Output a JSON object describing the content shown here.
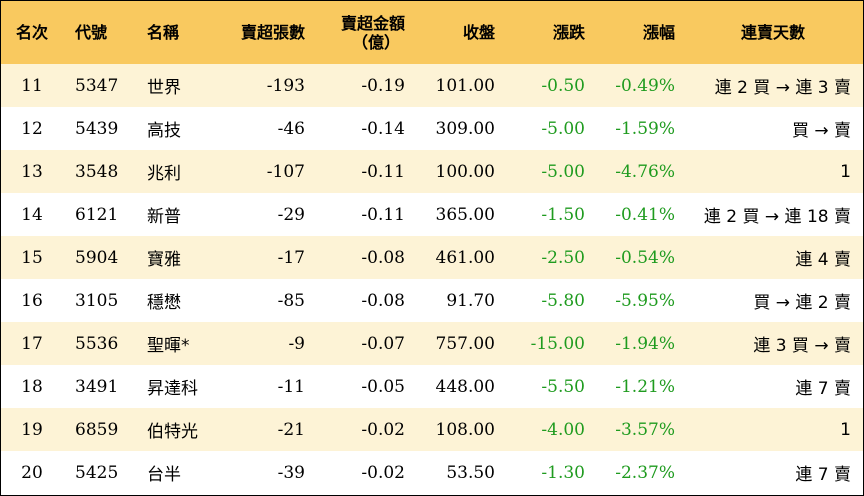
{
  "headers": {
    "rank": "名次",
    "code": "代號",
    "name": "名稱",
    "net_sell_lots": "賣超張數",
    "net_sell_amount_line1": "賣超金額",
    "net_sell_amount_line2": "（億）",
    "close": "收盤",
    "change": "漲跌",
    "change_pct": "漲幅",
    "streak": "連賣天數"
  },
  "rows": [
    {
      "rank": "11",
      "code": "5347",
      "name": "世界",
      "lots": "-193",
      "amount": "-0.19",
      "close": "101.00",
      "change": "-0.50",
      "pct": "-0.49%",
      "streak": "連 2 買 → 連 3 賣"
    },
    {
      "rank": "12",
      "code": "5439",
      "name": "高技",
      "lots": "-46",
      "amount": "-0.14",
      "close": "309.00",
      "change": "-5.00",
      "pct": "-1.59%",
      "streak": "買 → 賣"
    },
    {
      "rank": "13",
      "code": "3548",
      "name": "兆利",
      "lots": "-107",
      "amount": "-0.11",
      "close": "100.00",
      "change": "-5.00",
      "pct": "-4.76%",
      "streak": "1"
    },
    {
      "rank": "14",
      "code": "6121",
      "name": "新普",
      "lots": "-29",
      "amount": "-0.11",
      "close": "365.00",
      "change": "-1.50",
      "pct": "-0.41%",
      "streak": "連 2 買 → 連 18 賣"
    },
    {
      "rank": "15",
      "code": "5904",
      "name": "寶雅",
      "lots": "-17",
      "amount": "-0.08",
      "close": "461.00",
      "change": "-2.50",
      "pct": "-0.54%",
      "streak": "連 4 賣"
    },
    {
      "rank": "16",
      "code": "3105",
      "name": "穩懋",
      "lots": "-85",
      "amount": "-0.08",
      "close": "91.70",
      "change": "-5.80",
      "pct": "-5.95%",
      "streak": "買 → 連 2 賣"
    },
    {
      "rank": "17",
      "code": "5536",
      "name": "聖暉*",
      "lots": "-9",
      "amount": "-0.07",
      "close": "757.00",
      "change": "-15.00",
      "pct": "-1.94%",
      "streak": "連 3 買 → 賣"
    },
    {
      "rank": "18",
      "code": "3491",
      "name": "昇達科",
      "lots": "-11",
      "amount": "-0.05",
      "close": "448.00",
      "change": "-5.50",
      "pct": "-1.21%",
      "streak": "連 7 賣"
    },
    {
      "rank": "19",
      "code": "6859",
      "name": "伯特光",
      "lots": "-21",
      "amount": "-0.02",
      "close": "108.00",
      "change": "-4.00",
      "pct": "-3.57%",
      "streak": "1"
    },
    {
      "rank": "20",
      "code": "5425",
      "name": "台半",
      "lots": "-39",
      "amount": "-0.02",
      "close": "53.50",
      "change": "-1.30",
      "pct": "-2.37%",
      "streak": "連 7 賣"
    }
  ],
  "colors": {
    "header_bg": "#f9c95f",
    "odd_row_bg": "#fdf3d6",
    "even_row_bg": "#ffffff",
    "change_text": "#1f9b1f"
  }
}
